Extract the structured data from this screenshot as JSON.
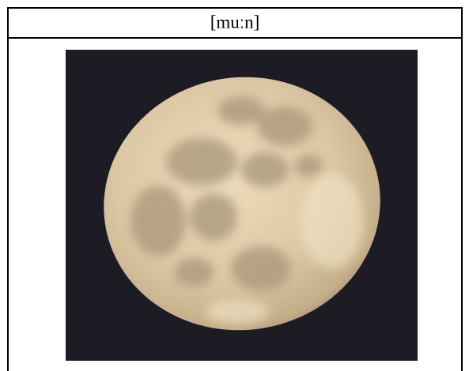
{
  "header": {
    "title": "[muːn]"
  }
}
